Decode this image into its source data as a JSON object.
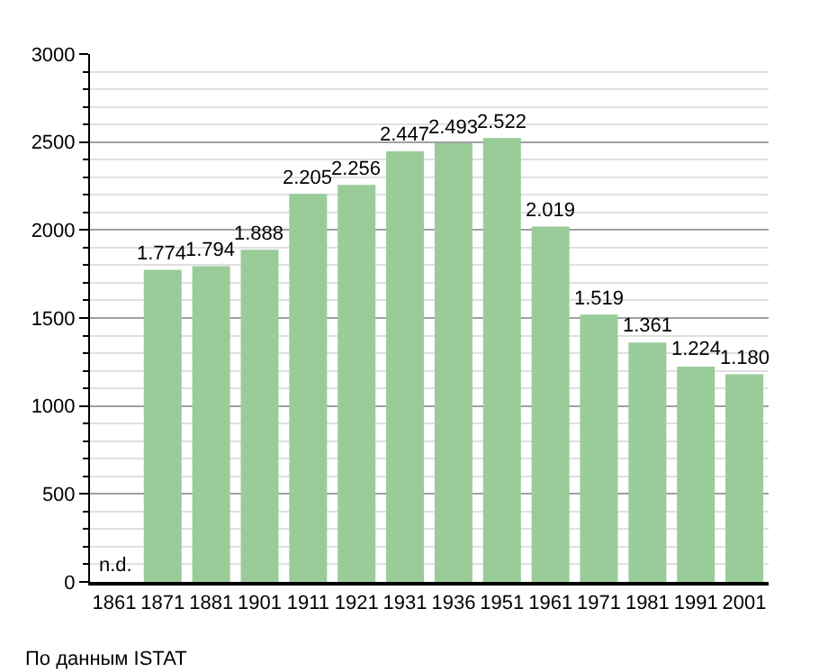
{
  "chart_data": {
    "type": "bar",
    "categories": [
      "1861",
      "1871",
      "1881",
      "1901",
      "1911",
      "1921",
      "1931",
      "1936",
      "1951",
      "1961",
      "1971",
      "1981",
      "1991",
      "2001"
    ],
    "values": [
      null,
      1774,
      1794,
      1888,
      2205,
      2256,
      2447,
      2493,
      2522,
      2019,
      1519,
      1361,
      1224,
      1180
    ],
    "value_labels": [
      "n.d.",
      "1.774",
      "1.794",
      "1.888",
      "2.205",
      "2.256",
      "2.447",
      "2.493",
      "2.522",
      "2.019",
      "1.519",
      "1.361",
      "1.224",
      "1.180"
    ],
    "color": "#99cc99",
    "ylim": [
      0,
      3000
    ],
    "yticks": [
      0,
      500,
      1000,
      1500,
      2000,
      2500,
      3000
    ],
    "grid": "y",
    "legend": false,
    "annotations": [
      "По данным ISTAT"
    ]
  }
}
